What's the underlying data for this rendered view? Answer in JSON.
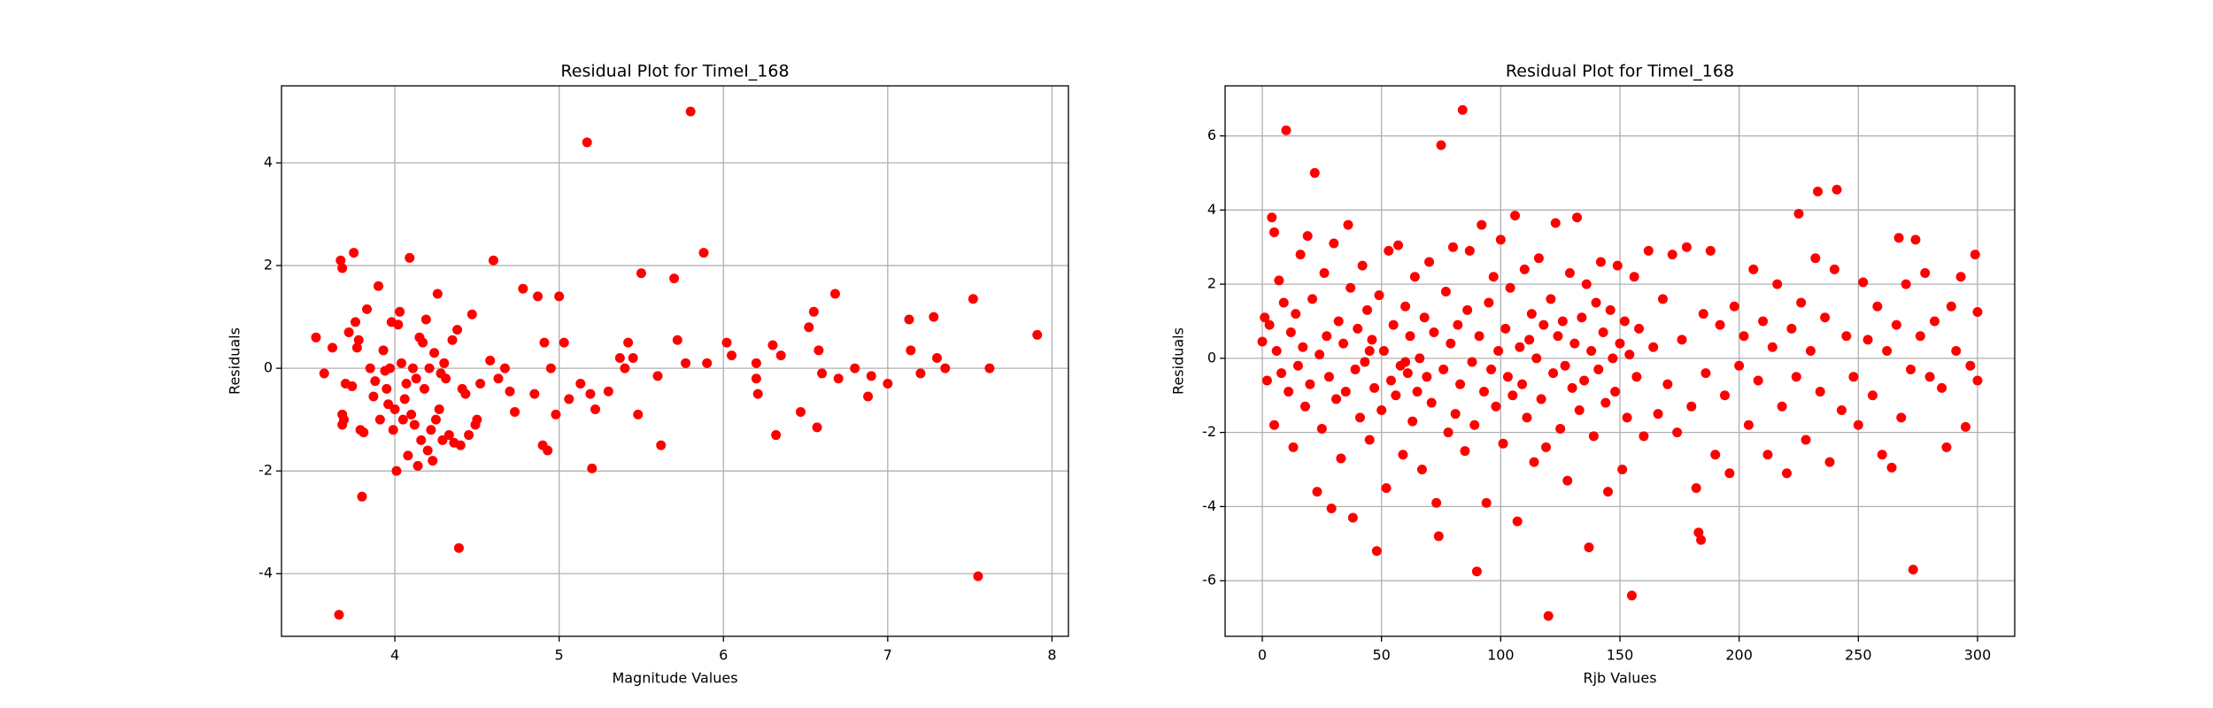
{
  "chart_data": [
    {
      "type": "scatter",
      "title": "Residual Plot for TimeI_168",
      "xlabel": "Magnitude Values",
      "ylabel": "Residuals",
      "color": "red",
      "grid": true,
      "xlim": [
        3.31,
        8.1
      ],
      "ylim": [
        -5.22,
        5.5
      ],
      "xticks": [
        4,
        5,
        6,
        7,
        8
      ],
      "yticks": [
        -4,
        -2,
        0,
        2,
        4
      ],
      "x": [
        3.52,
        3.57,
        3.62,
        3.66,
        3.67,
        3.68,
        3.68,
        3.68,
        3.69,
        3.7,
        3.72,
        3.74,
        3.75,
        3.76,
        3.77,
        3.78,
        3.79,
        3.8,
        3.81,
        3.83,
        3.85,
        3.87,
        3.88,
        3.9,
        3.91,
        3.93,
        3.94,
        3.95,
        3.96,
        3.97,
        3.98,
        3.99,
        4.0,
        4.01,
        4.02,
        4.03,
        4.04,
        4.05,
        4.06,
        4.07,
        4.08,
        4.09,
        4.1,
        4.11,
        4.12,
        4.13,
        4.14,
        4.15,
        4.16,
        4.17,
        4.18,
        4.19,
        4.2,
        4.21,
        4.22,
        4.23,
        4.24,
        4.25,
        4.26,
        4.27,
        4.28,
        4.29,
        4.3,
        4.31,
        4.33,
        4.35,
        4.36,
        4.38,
        4.39,
        4.4,
        4.41,
        4.43,
        4.45,
        4.47,
        4.49,
        4.5,
        4.52,
        4.58,
        4.6,
        4.63,
        4.67,
        4.7,
        4.73,
        4.78,
        4.85,
        4.87,
        4.9,
        4.91,
        4.93,
        4.95,
        4.98,
        5.0,
        5.03,
        5.06,
        5.13,
        5.17,
        5.19,
        5.2,
        5.22,
        5.3,
        5.37,
        5.4,
        5.42,
        5.45,
        5.48,
        5.5,
        5.6,
        5.62,
        5.7,
        5.72,
        5.77,
        5.8,
        5.88,
        5.9,
        6.02,
        6.05,
        6.2,
        6.2,
        6.21,
        6.3,
        6.32,
        6.35,
        6.47,
        6.52,
        6.55,
        6.57,
        6.58,
        6.6,
        6.68,
        6.7,
        6.8,
        6.88,
        6.9,
        7.0,
        7.13,
        7.14,
        7.2,
        7.28,
        7.3,
        7.35,
        7.52,
        7.55,
        7.62,
        7.91
      ],
      "values": [
        0.6,
        -0.1,
        0.4,
        -4.8,
        2.1,
        1.95,
        -0.9,
        -1.1,
        -1.0,
        -0.3,
        0.7,
        -0.35,
        2.25,
        0.9,
        0.4,
        0.55,
        -1.2,
        -2.5,
        -1.25,
        1.15,
        0,
        -0.55,
        -0.25,
        1.6,
        -1.0,
        0.35,
        -0.05,
        -0.4,
        -0.7,
        0,
        0.9,
        -1.2,
        -0.8,
        -2.0,
        0.85,
        1.1,
        0.1,
        -1.0,
        -0.6,
        -0.3,
        -1.7,
        2.15,
        -0.9,
        0,
        -1.1,
        -0.2,
        -1.9,
        0.6,
        -1.4,
        0.5,
        -0.4,
        0.95,
        -1.6,
        0,
        -1.2,
        -1.8,
        0.3,
        -1.0,
        1.45,
        -0.8,
        -0.1,
        -1.4,
        0.1,
        -0.2,
        -1.3,
        0.55,
        -1.45,
        0.75,
        -3.5,
        -1.5,
        -0.4,
        -0.5,
        -1.3,
        1.05,
        -1.1,
        -1.0,
        -0.3,
        0.15,
        2.1,
        -0.2,
        0,
        -0.45,
        -0.85,
        1.55,
        -0.5,
        1.4,
        -1.5,
        0.5,
        -1.6,
        0,
        -0.9,
        1.4,
        0.5,
        -0.6,
        -0.3,
        4.4,
        -0.5,
        -1.95,
        -0.8,
        -0.45,
        0.2,
        0,
        0.5,
        0.2,
        -0.9,
        1.85,
        -0.15,
        -1.5,
        1.75,
        0.55,
        0.1,
        5.0,
        2.25,
        0.1,
        0.5,
        0.25,
        0.1,
        -0.2,
        -0.5,
        0.45,
        -1.3,
        0.25,
        -0.85,
        0.8,
        1.1,
        -1.15,
        0.35,
        -0.1,
        1.45,
        -0.2,
        0,
        -0.55,
        -0.15,
        -0.3,
        0.95,
        0.35,
        -0.1,
        1.0,
        0.2,
        0,
        1.35,
        -4.05,
        0,
        0.65
      ]
    },
    {
      "type": "scatter",
      "title": "Residual Plot for TimeI_168",
      "xlabel": "Rjb Values",
      "ylabel": "Residuals",
      "color": "red",
      "grid": true,
      "xlim": [
        -15.6,
        315.6
      ],
      "ylim": [
        -7.5,
        7.35
      ],
      "xticks": [
        0,
        50,
        100,
        150,
        200,
        250,
        300
      ],
      "yticks": [
        -6,
        -4,
        -2,
        0,
        2,
        4,
        6
      ],
      "x": [
        0,
        1,
        2,
        3,
        4,
        5,
        5,
        6,
        7,
        8,
        9,
        10,
        11,
        12,
        13,
        14,
        15,
        16,
        17,
        18,
        19,
        20,
        21,
        22,
        23,
        24,
        25,
        26,
        27,
        28,
        29,
        30,
        31,
        32,
        33,
        34,
        35,
        36,
        37,
        38,
        39,
        40,
        41,
        42,
        43,
        44,
        45,
        46,
        47,
        48,
        49,
        50,
        51,
        52,
        53,
        54,
        55,
        56,
        57,
        58,
        59,
        60,
        61,
        62,
        63,
        64,
        65,
        66,
        67,
        68,
        69,
        70,
        71,
        72,
        73,
        74,
        75,
        76,
        77,
        78,
        79,
        80,
        81,
        82,
        83,
        84,
        85,
        86,
        87,
        88,
        89,
        90,
        91,
        92,
        93,
        94,
        95,
        96,
        97,
        98,
        99,
        100,
        101,
        102,
        103,
        104,
        105,
        106,
        107,
        108,
        109,
        110,
        111,
        112,
        113,
        114,
        115,
        116,
        117,
        118,
        119,
        120,
        121,
        122,
        123,
        124,
        125,
        126,
        127,
        128,
        129,
        130,
        131,
        132,
        133,
        134,
        135,
        136,
        137,
        138,
        139,
        140,
        141,
        142,
        143,
        144,
        145,
        146,
        147,
        148,
        149,
        150,
        151,
        152,
        153,
        154,
        155,
        156,
        157,
        158,
        160,
        162,
        164,
        166,
        168,
        170,
        172,
        174,
        176,
        178,
        180,
        182,
        183,
        184,
        185,
        186,
        188,
        190,
        192,
        194,
        196,
        198,
        200,
        202,
        204,
        206,
        208,
        210,
        212,
        214,
        216,
        218,
        220,
        222,
        224,
        225,
        226,
        228,
        230,
        232,
        233,
        234,
        236,
        238,
        240,
        241,
        243,
        245,
        248,
        250,
        252,
        254,
        256,
        258,
        260,
        262,
        264,
        266,
        267,
        268,
        270,
        272,
        273,
        274,
        276,
        278,
        280,
        282,
        285,
        287,
        289,
        291,
        293,
        295,
        297,
        299,
        300,
        300,
        60,
        45
      ],
      "values": [
        0.45,
        1.1,
        -0.6,
        0.9,
        3.8,
        3.4,
        -1.8,
        0.2,
        2.1,
        -0.4,
        1.5,
        6.15,
        -0.9,
        0.7,
        -2.4,
        1.2,
        -0.2,
        2.8,
        0.3,
        -1.3,
        3.3,
        -0.7,
        1.6,
        5.0,
        -3.6,
        0.1,
        -1.9,
        2.3,
        0.6,
        -0.5,
        -4.05,
        3.1,
        -1.1,
        1.0,
        -2.7,
        0.4,
        -0.9,
        3.6,
        1.9,
        -4.3,
        -0.3,
        0.8,
        -1.6,
        2.5,
        -0.1,
        1.3,
        -2.2,
        0.5,
        -0.8,
        -5.2,
        1.7,
        -1.4,
        0.2,
        -3.5,
        2.9,
        -0.6,
        0.9,
        -1.0,
        3.05,
        -0.2,
        -2.6,
        1.4,
        -0.4,
        0.6,
        -1.7,
        2.2,
        -0.9,
        0.0,
        -3.0,
        1.1,
        -0.5,
        2.6,
        -1.2,
        0.7,
        -3.9,
        -4.8,
        5.75,
        -0.3,
        1.8,
        -2.0,
        0.4,
        3.0,
        -1.5,
        0.9,
        -0.7,
        6.7,
        -2.5,
        1.3,
        2.9,
        -0.1,
        -1.8,
        -5.75,
        0.6,
        3.6,
        -0.9,
        -3.9,
        1.5,
        -0.3,
        2.2,
        -1.3,
        0.2,
        3.2,
        -2.3,
        0.8,
        -0.5,
        1.9,
        -1.0,
        3.85,
        -4.4,
        0.3,
        -0.7,
        2.4,
        -1.6,
        0.5,
        1.2,
        -2.8,
        0.0,
        2.7,
        -1.1,
        0.9,
        -2.4,
        -6.95,
        1.6,
        -0.4,
        3.65,
        0.6,
        -1.9,
        1.0,
        -0.2,
        -3.3,
        2.3,
        -0.8,
        0.4,
        3.8,
        -1.4,
        1.1,
        -0.6,
        2.0,
        -5.1,
        0.2,
        -2.1,
        1.5,
        -0.3,
        2.6,
        0.7,
        -1.2,
        -3.6,
        1.3,
        0.0,
        -0.9,
        2.5,
        0.4,
        -3.0,
        1.0,
        -1.6,
        0.1,
        -6.4,
        2.2,
        -0.5,
        0.8,
        -2.1,
        2.9,
        0.3,
        -1.5,
        1.6,
        -0.7,
        2.8,
        -2.0,
        0.5,
        3.0,
        -1.3,
        -3.5,
        -4.7,
        -4.9,
        1.2,
        -0.4,
        2.9,
        -2.6,
        0.9,
        -1.0,
        -3.1,
        1.4,
        -0.2,
        0.6,
        -1.8,
        2.4,
        -0.6,
        1.0,
        -2.6,
        0.3,
        2.0,
        -1.3,
        -3.1,
        0.8,
        -0.5,
        3.9,
        1.5,
        -2.2,
        0.2,
        2.7,
        4.5,
        -0.9,
        1.1,
        -2.8,
        2.4,
        4.55,
        -1.4,
        0.6,
        -0.5,
        -1.8,
        2.05,
        0.5,
        -1.0,
        1.4,
        -2.6,
        0.2,
        -2.95,
        0.9,
        3.25,
        -1.6,
        2.0,
        -0.3,
        -5.7,
        3.2,
        0.6,
        2.3,
        -0.5,
        1.0,
        -0.8,
        -2.4,
        1.4,
        0.2,
        2.2,
        -1.85,
        -0.2,
        2.8,
        -0.6,
        1.25,
        -0.1,
        0.2
      ]
    }
  ]
}
